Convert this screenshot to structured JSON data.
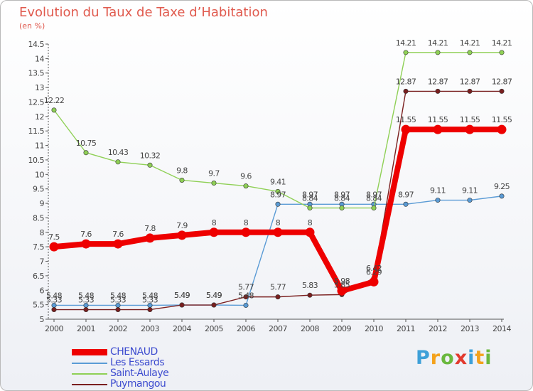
{
  "title": "Evolution du Taux de Taxe d’Habitation",
  "subtitle": "(en %)",
  "logo": [
    "P",
    "r",
    "o",
    "x",
    "i",
    "t",
    "i"
  ],
  "logo_colors": [
    "#3ea0d8",
    "#f4a21c",
    "#6ab83e",
    "#e23a2e",
    "#3ea0d8",
    "#f4a21c",
    "#6ab83e"
  ],
  "chart_data": {
    "type": "line",
    "title": "Evolution du Taux de Taxe d’Habitation",
    "ylabel": "(en %)",
    "xlabel": "",
    "x": [
      "2000",
      "2001",
      "2002",
      "2003",
      "2004",
      "2005",
      "2006",
      "2007",
      "2008",
      "2009",
      "2010",
      "2011",
      "2012",
      "2013",
      "2014"
    ],
    "ylim": [
      5,
      14.5
    ],
    "yticks": [
      "5",
      "5.5",
      "6",
      "6.5",
      "7",
      "7.5",
      "8",
      "8.5",
      "9",
      "9.5",
      "10",
      "10.5",
      "11",
      "11.5",
      "12",
      "12.5",
      "13",
      "13.5",
      "14",
      "14.5"
    ],
    "grid": false,
    "legend_position": "bottom-left",
    "series": [
      {
        "name": "CHENAUD",
        "color": "#ee0000",
        "values": [
          7.5,
          7.6,
          7.6,
          7.8,
          7.9,
          8,
          8,
          8,
          8,
          5.98,
          6.29,
          11.55,
          11.55,
          11.55,
          11.55
        ],
        "labels": [
          "7.5",
          "7.6",
          "7.6",
          "7.8",
          "7.9",
          "8",
          "8",
          "8",
          "8",
          "5.98",
          "6.29",
          "11.55",
          "11.55",
          "11.55",
          "11.55"
        ]
      },
      {
        "name": "Les Essards",
        "color": "#5a9bd5",
        "values": [
          5.48,
          5.48,
          5.48,
          5.48,
          5.49,
          5.49,
          5.48,
          8.97,
          8.97,
          8.97,
          8.97,
          8.97,
          9.11,
          9.11,
          9.25
        ],
        "labels": [
          "5.48",
          "5.48",
          "5.48",
          "5.48",
          "5.49",
          "5.49",
          "5.48",
          "8.97",
          "8.97",
          "8.97",
          "8.97",
          "8.97",
          "9.11",
          "9.11",
          "9.25"
        ]
      },
      {
        "name": "Saint-Aulaye",
        "color": "#8fd056",
        "values": [
          12.22,
          10.75,
          10.43,
          10.32,
          9.8,
          9.7,
          9.6,
          9.41,
          8.84,
          8.84,
          8.84,
          14.21,
          14.21,
          14.21,
          14.21
        ],
        "labels": [
          "12.22",
          "10.75",
          "10.43",
          "10.32",
          "9.8",
          "9.7",
          "9.6",
          "9.41",
          "8.84",
          "8.84",
          "8.84",
          "14.21",
          "14.21",
          "14.21",
          "14.21"
        ]
      },
      {
        "name": "Puymangou",
        "color": "#7a1f1f",
        "values": [
          5.33,
          5.33,
          5.33,
          5.33,
          5.49,
          5.49,
          5.77,
          5.77,
          5.83,
          5.85,
          6.42,
          12.87,
          12.87,
          12.87,
          12.87
        ],
        "labels": [
          "5.33",
          "5.33",
          "5.33",
          "5.33",
          "5.49",
          "5.49",
          "5.77",
          "5.77",
          "5.83",
          "5.85",
          "6.42",
          "12.87",
          "12.87",
          "12.87",
          "12.87"
        ]
      }
    ]
  }
}
